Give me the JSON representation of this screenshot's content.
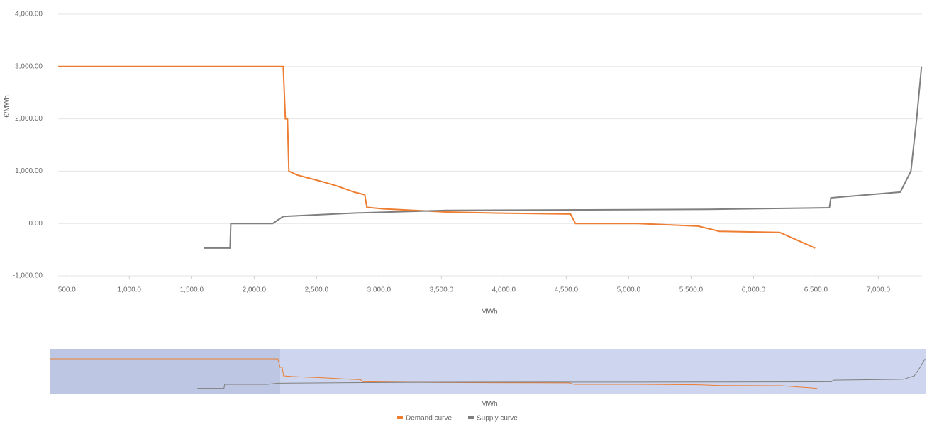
{
  "chart_data": {
    "type": "line",
    "y_label": "€/MWh",
    "x_label": "MWh",
    "xlim": [
      430,
      7350
    ],
    "xticks": [
      {
        "value": 500,
        "label": "500.0"
      },
      {
        "value": 1000,
        "label": "1,000.0"
      },
      {
        "value": 1500,
        "label": "1,500.0"
      },
      {
        "value": 2000,
        "label": "2,000.0"
      },
      {
        "value": 2500,
        "label": "2,500.0"
      },
      {
        "value": 3000,
        "label": "3,000.0"
      },
      {
        "value": 3500,
        "label": "3,500.0"
      },
      {
        "value": 4000,
        "label": "4,000.0"
      },
      {
        "value": 4500,
        "label": "4,500.0"
      },
      {
        "value": 5000,
        "label": "5,000.0"
      },
      {
        "value": 5500,
        "label": "5,500.0"
      },
      {
        "value": 6000,
        "label": "6,000.0"
      },
      {
        "value": 6500,
        "label": "6,500.0"
      },
      {
        "value": 7000,
        "label": "7,000.0"
      }
    ],
    "ylim": [
      -1000,
      4000
    ],
    "yticks": [
      {
        "value": -1000,
        "label": "-1,000.00"
      },
      {
        "value": 0,
        "label": "0.00"
      },
      {
        "value": 1000,
        "label": "1,000.00"
      },
      {
        "value": 2000,
        "label": "2,000.00"
      },
      {
        "value": 3000,
        "label": "3,000.00"
      },
      {
        "value": 4000,
        "label": "4,000.00"
      }
    ],
    "grid": true,
    "legend": "bottom",
    "series": [
      {
        "name": "Demand curve",
        "color": "#ed7d31",
        "x": [
          430,
          2233,
          2250,
          2267,
          2278,
          2340,
          2403,
          2545,
          2660,
          2800,
          2886,
          2903,
          3028,
          3540,
          3938,
          4534,
          4574,
          5074,
          5557,
          5727,
          6210,
          6494
        ],
        "values": [
          3000,
          3000,
          2000,
          2000,
          1000,
          930,
          890,
          800,
          720,
          600,
          550,
          310,
          280,
          220,
          200,
          180,
          0,
          0,
          -50,
          -150,
          -170,
          -470
        ]
      },
      {
        "name": "Supply curve",
        "color": "#7f7f7f",
        "x": [
          1597,
          1807,
          1813,
          2148,
          2233,
          2800,
          3540,
          5642,
          6608,
          6620,
          7176,
          7261,
          7307,
          7346
        ],
        "values": [
          -470,
          -470,
          0,
          0,
          135,
          200,
          250,
          270,
          300,
          490,
          600,
          1000,
          2000,
          3000
        ]
      }
    ]
  }
}
